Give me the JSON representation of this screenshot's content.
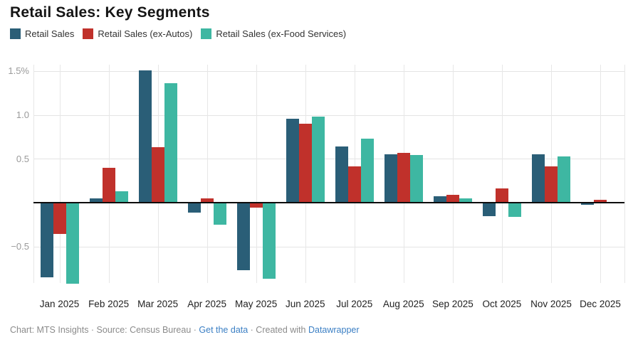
{
  "title": "Retail Sales: Key Segments",
  "chart_data": {
    "type": "bar",
    "title": "Retail Sales: Key Segments",
    "categories": [
      "Jan 2025",
      "Feb 2025",
      "Mar 2025",
      "Apr 2025",
      "May 2025",
      "Jun 2025",
      "Jul 2025",
      "Aug 2025",
      "Sep 2025",
      "Oct 2025",
      "Nov 2025",
      "Dec 2025"
    ],
    "series": [
      {
        "name": "Retail Sales",
        "color": "#2a5e77",
        "values": [
          -0.85,
          0.05,
          1.51,
          -0.11,
          -0.77,
          0.96,
          0.64,
          0.55,
          0.07,
          -0.15,
          0.55,
          -0.02
        ]
      },
      {
        "name": "Retail Sales (ex-Autos)",
        "color": "#c0312b",
        "values": [
          -0.36,
          0.4,
          0.63,
          0.05,
          -0.06,
          0.9,
          0.41,
          0.57,
          0.09,
          0.16,
          0.41,
          0.03
        ]
      },
      {
        "name": "Retail Sales (ex-Food Services)",
        "color": "#3eb7a2",
        "values": [
          -0.92,
          0.13,
          1.36,
          -0.25,
          -0.87,
          0.98,
          0.73,
          0.54,
          0.05,
          -0.16,
          0.53,
          0.0
        ]
      }
    ],
    "unit": "%",
    "ylim": [
      -1.03,
      1.57
    ],
    "yticks": [
      {
        "label": "1.5%",
        "value": 1.5
      },
      {
        "label": "1.0",
        "value": 1.0
      },
      {
        "label": "0.5",
        "value": 0.5
      },
      {
        "label": "−0.5",
        "value": -0.5
      }
    ],
    "baseline_value": 0,
    "grid": "on",
    "legend_position": "top-left"
  },
  "footer": {
    "prefix": "Chart: MTS Insights · Source: Census Bureau · ",
    "link_data": "Get the data",
    "middle": " · Created with ",
    "link_brand": "Datawrapper"
  }
}
